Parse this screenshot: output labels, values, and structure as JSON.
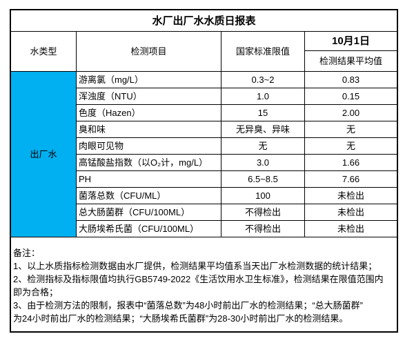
{
  "report": {
    "title": "水厂出厂水水质日报表",
    "header": {
      "water_type": "水类型",
      "test_item": "检测项目",
      "national_standard": "国家标准限值",
      "date": "10月1日",
      "result_avg": "检测结果平均值"
    },
    "water_type_value": "出厂水",
    "colors": {
      "water_type_bg": "#00B0F0",
      "border": "#000000"
    },
    "rows": [
      {
        "item": "游离氯（mg/L）",
        "standard": "0.3~2",
        "result": "0.83"
      },
      {
        "item": "浑浊度（NTU）",
        "standard": "1.0",
        "result": "0.15"
      },
      {
        "item": "色度（Hazen）",
        "standard": "15",
        "result": "2.00"
      },
      {
        "item": "臭和味",
        "standard": "无异臭、异味",
        "result": "无"
      },
      {
        "item": "肉眼可见物",
        "standard": "无",
        "result": "无"
      },
      {
        "item": "高锰酸盐指数（以O₂计，mg/L）",
        "standard": "3.0",
        "result": "1.66"
      },
      {
        "item": "PH",
        "standard": "6.5~8.5",
        "result": "7.66"
      },
      {
        "item": "菌落总数（CFU/ML）",
        "standard": "100",
        "result": "未检出"
      },
      {
        "item": "总大肠菌群（CFU/100ML）",
        "standard": "不得检出",
        "result": "未检出"
      },
      {
        "item": "大肠埃希氏菌（CFU/100ML）",
        "standard": "不得检出",
        "result": "未检出"
      }
    ],
    "notes": {
      "lines": [
        "备注：",
        "1、以上水质指标检测数据由水厂提供，检测结果平均值系当天出厂水检测数据的统计结果；",
        "2、检测指标及指标限值均执行GB5749-2022《生活饮用水卫生标准》，检测结果在限值范围内",
        "即为合格；",
        "3、由于检测方法的限制，报表中“菌落总数”为48小时前出厂水的检测结果；“总大肠菌群”",
        "为24小时前出厂水的检测结果；“大肠埃希氏菌群”为28-30小时前出厂水的检测结果。"
      ]
    }
  }
}
